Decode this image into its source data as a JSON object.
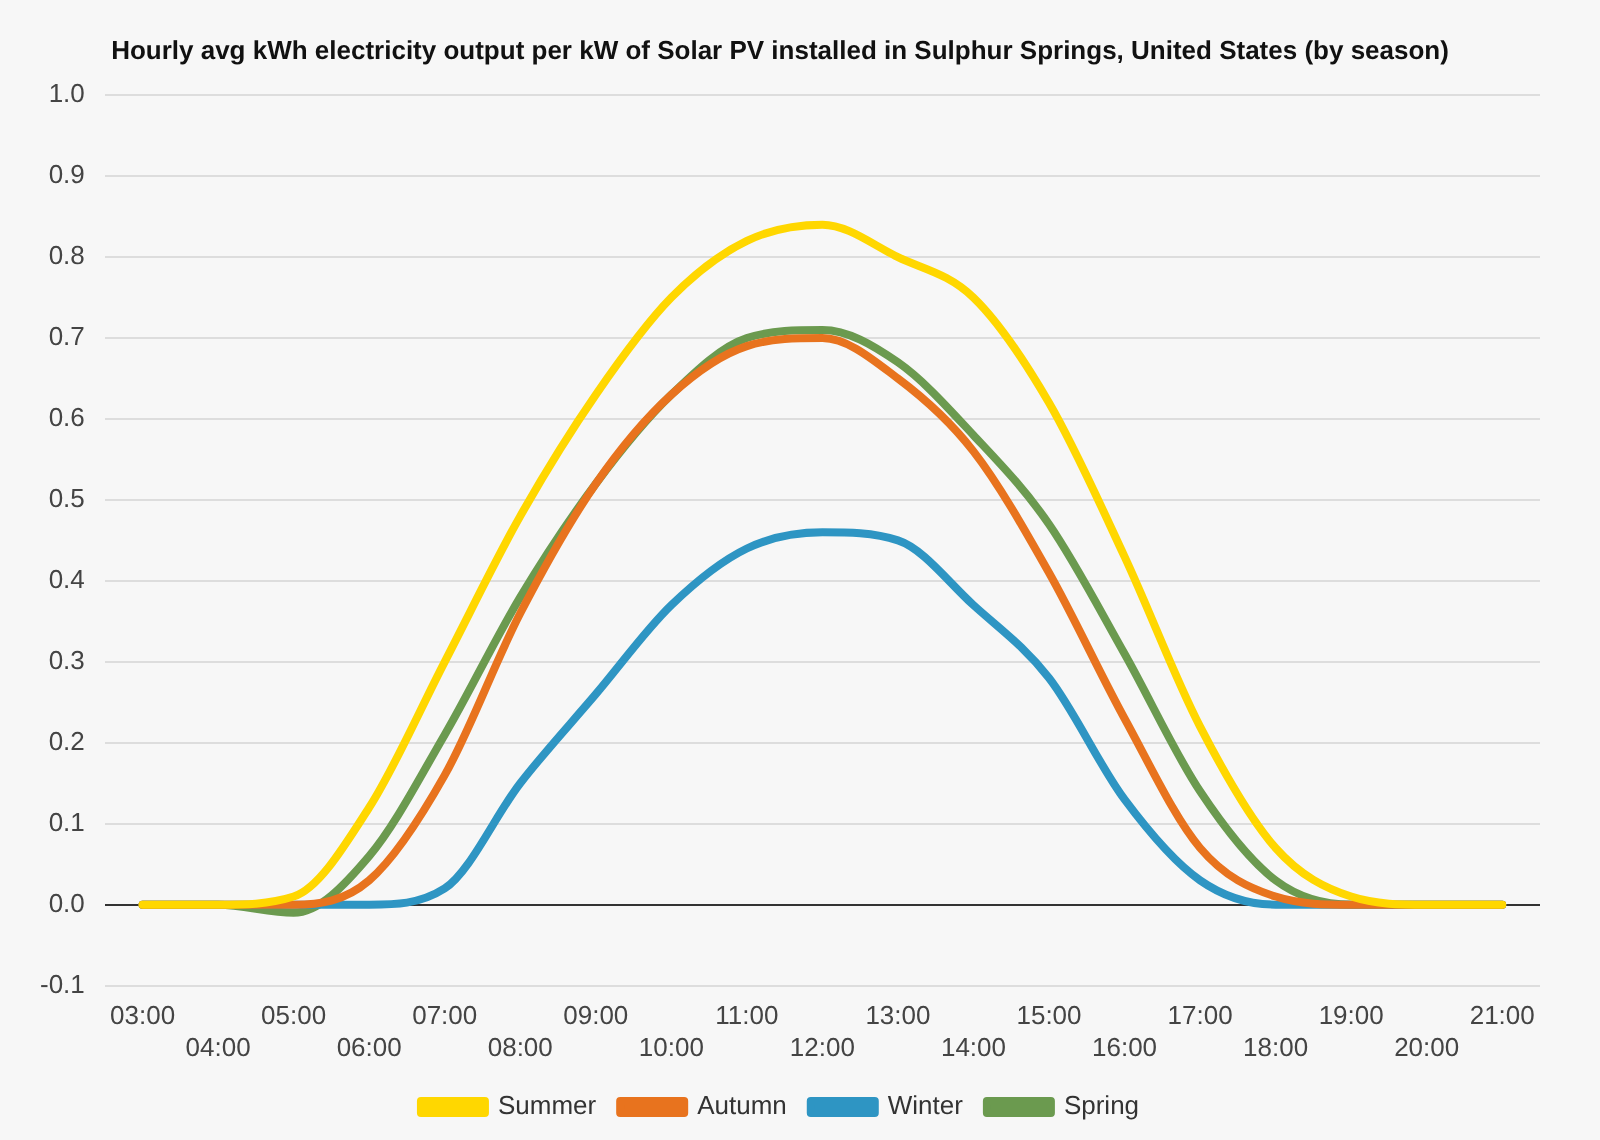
{
  "chart_data": {
    "type": "line",
    "title": "Hourly avg kWh electricity output per kW of Solar PV installed in Sulphur Springs, United States (by season)",
    "categories": [
      "03:00",
      "04:00",
      "05:00",
      "06:00",
      "07:00",
      "08:00",
      "09:00",
      "10:00",
      "11:00",
      "12:00",
      "13:00",
      "14:00",
      "15:00",
      "16:00",
      "17:00",
      "18:00",
      "19:00",
      "20:00",
      "21:00"
    ],
    "series": [
      {
        "name": "Summer",
        "color": "#ffd700",
        "values": [
          0,
          0,
          0.01,
          0.12,
          0.3,
          0.48,
          0.63,
          0.75,
          0.82,
          0.84,
          0.8,
          0.75,
          0.62,
          0.43,
          0.22,
          0.07,
          0.01,
          0,
          0
        ]
      },
      {
        "name": "Autumn",
        "color": "#e8731e",
        "values": [
          0,
          0,
          0,
          0.03,
          0.16,
          0.36,
          0.52,
          0.63,
          0.69,
          0.7,
          0.65,
          0.56,
          0.41,
          0.23,
          0.07,
          0.01,
          0,
          0,
          0
        ]
      },
      {
        "name": "Winter",
        "color": "#2e95c3",
        "values": [
          0,
          0,
          0,
          0,
          0.02,
          0.15,
          0.26,
          0.37,
          0.44,
          0.46,
          0.45,
          0.37,
          0.28,
          0.13,
          0.03,
          0,
          0,
          0,
          0
        ]
      },
      {
        "name": "Spring",
        "color": "#6b9a4f",
        "values": [
          0,
          0,
          -0.01,
          0.06,
          0.21,
          0.38,
          0.52,
          0.63,
          0.7,
          0.71,
          0.67,
          0.58,
          0.47,
          0.31,
          0.14,
          0.03,
          0,
          0,
          0
        ]
      }
    ],
    "ylim": [
      -0.1,
      1.0
    ],
    "yticks": [
      {
        "value": -0.1,
        "label": "-0.1"
      },
      {
        "value": 0,
        "label": "0.0"
      },
      {
        "value": 0.1,
        "label": "0.1"
      },
      {
        "value": 0.2,
        "label": "0.2"
      },
      {
        "value": 0.3,
        "label": "0.3"
      },
      {
        "value": 0.4,
        "label": "0.4"
      },
      {
        "value": 0.5,
        "label": "0.5"
      },
      {
        "value": 0.6,
        "label": "0.6"
      },
      {
        "value": 0.7,
        "label": "0.7"
      },
      {
        "value": 0.8,
        "label": "0.8"
      },
      {
        "value": 0.9,
        "label": "0.9"
      },
      {
        "value": 1.0,
        "label": "1.0"
      }
    ],
    "grid": "y",
    "legend": "bottom",
    "marker": "none",
    "line_style": "solid"
  }
}
